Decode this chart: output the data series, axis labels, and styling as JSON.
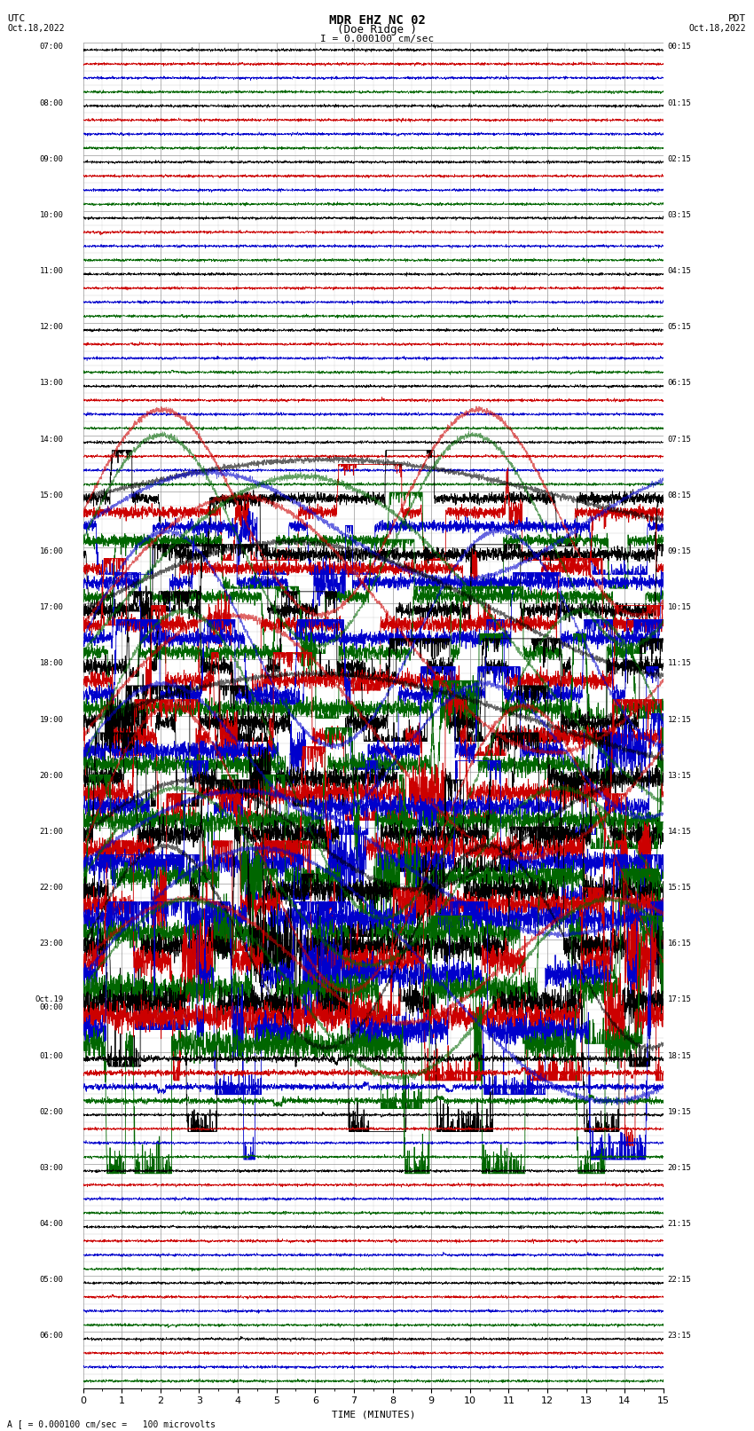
{
  "title_line1": "MDR EHZ NC 02",
  "title_line2": "(Doe Ridge )",
  "scale_text": "I = 0.000100 cm/sec",
  "utc_label": "UTC",
  "utc_date": "Oct.18,2022",
  "pdt_label": "PDT",
  "pdt_date": "Oct.18,2022",
  "xlabel": "TIME (MINUTES)",
  "bottom_note": "A [ = 0.000100 cm/sec =   100 microvolts",
  "left_times": [
    "07:00",
    "08:00",
    "09:00",
    "10:00",
    "11:00",
    "12:00",
    "13:00",
    "14:00",
    "15:00",
    "16:00",
    "17:00",
    "18:00",
    "19:00",
    "20:00",
    "21:00",
    "22:00",
    "23:00",
    "Oct.19\n00:00",
    "01:00",
    "02:00",
    "03:00",
    "04:00",
    "05:00",
    "06:00"
  ],
  "right_times": [
    "00:15",
    "01:15",
    "02:15",
    "03:15",
    "04:15",
    "05:15",
    "06:15",
    "07:15",
    "08:15",
    "09:15",
    "10:15",
    "11:15",
    "12:15",
    "13:15",
    "14:15",
    "15:15",
    "16:15",
    "17:15",
    "18:15",
    "19:15",
    "20:15",
    "21:15",
    "22:15",
    "23:15"
  ],
  "n_groups": 24,
  "sub_traces": 4,
  "x_min": 0,
  "x_max": 15,
  "x_ticks": [
    0,
    1,
    2,
    3,
    4,
    5,
    6,
    7,
    8,
    9,
    10,
    11,
    12,
    13,
    14,
    15
  ],
  "colors": {
    "black": "#000000",
    "red": "#cc0000",
    "blue": "#0000cc",
    "green": "#006600",
    "gray": "#999999",
    "background": "#ffffff"
  },
  "trace_colors": [
    "#000000",
    "#cc0000",
    "#0000cc",
    "#006600"
  ],
  "seed": 42
}
